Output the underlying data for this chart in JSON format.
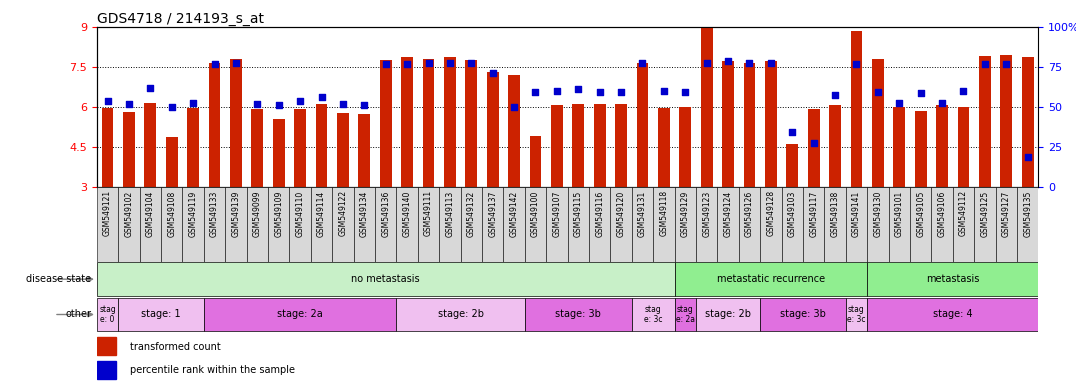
{
  "title": "GDS4718 / 214193_s_at",
  "samples": [
    "GSM549121",
    "GSM549102",
    "GSM549104",
    "GSM549108",
    "GSM549119",
    "GSM549133",
    "GSM549139",
    "GSM549099",
    "GSM549109",
    "GSM549110",
    "GSM549114",
    "GSM549122",
    "GSM549134",
    "GSM549136",
    "GSM549140",
    "GSM549111",
    "GSM549113",
    "GSM549132",
    "GSM549137",
    "GSM549142",
    "GSM549100",
    "GSM549107",
    "GSM549115",
    "GSM549116",
    "GSM549120",
    "GSM549131",
    "GSM549118",
    "GSM549129",
    "GSM549123",
    "GSM549124",
    "GSM549126",
    "GSM549128",
    "GSM549103",
    "GSM549117",
    "GSM549138",
    "GSM549141",
    "GSM549130",
    "GSM549101",
    "GSM549105",
    "GSM549106",
    "GSM549112",
    "GSM549125",
    "GSM549127",
    "GSM549135"
  ],
  "bar_values": [
    5.95,
    5.82,
    6.15,
    4.85,
    5.95,
    7.65,
    7.8,
    5.9,
    5.55,
    5.92,
    6.1,
    5.75,
    5.72,
    7.75,
    7.85,
    7.8,
    7.85,
    7.75,
    7.3,
    7.2,
    4.9,
    6.05,
    6.1,
    6.1,
    6.1,
    7.65,
    5.95,
    6.0,
    9.0,
    7.7,
    7.65,
    7.7,
    4.6,
    5.9,
    6.05,
    8.85,
    7.8,
    6.0,
    5.85,
    6.05,
    6.0,
    7.9,
    7.95,
    7.85
  ],
  "percentile_values": [
    6.2,
    6.1,
    6.7,
    6.0,
    6.15,
    7.6,
    7.65,
    6.1,
    6.05,
    6.2,
    6.35,
    6.1,
    6.05,
    7.6,
    7.6,
    7.65,
    7.65,
    7.65,
    7.25,
    6.0,
    6.55,
    6.6,
    6.65,
    6.55,
    6.55,
    7.65,
    6.6,
    6.55,
    7.65,
    7.7,
    7.65,
    7.65,
    5.05,
    4.65,
    6.45,
    7.6,
    6.55,
    6.15,
    6.5,
    6.15,
    6.6,
    7.6,
    7.6,
    4.1
  ],
  "bar_color": "#cc2200",
  "percentile_color": "#0000cc",
  "ylim_left": [
    3,
    9
  ],
  "yticks_left": [
    3,
    4.5,
    6,
    7.5,
    9
  ],
  "ylim_right": [
    0,
    100
  ],
  "yticks_right": [
    0,
    25,
    50,
    75,
    100
  ],
  "hlines": [
    4.5,
    6.0,
    7.5
  ],
  "ds_groups": [
    {
      "label": "no metastasis",
      "start": 0,
      "end": 27,
      "color": "#c8f0c8"
    },
    {
      "label": "metastatic recurrence",
      "start": 27,
      "end": 36,
      "color": "#90EE90"
    },
    {
      "label": "metastasis",
      "start": 36,
      "end": 44,
      "color": "#90EE90"
    }
  ],
  "stage_groups": [
    {
      "label": "stag\ne: 0",
      "start": 0,
      "end": 1,
      "color": "#f0c0f0"
    },
    {
      "label": "stage: 1",
      "start": 1,
      "end": 5,
      "color": "#f0c0f0"
    },
    {
      "label": "stage: 2a",
      "start": 5,
      "end": 14,
      "color": "#e070e0"
    },
    {
      "label": "stage: 2b",
      "start": 14,
      "end": 20,
      "color": "#f0c0f0"
    },
    {
      "label": "stage: 3b",
      "start": 20,
      "end": 25,
      "color": "#e070e0"
    },
    {
      "label": "stag\ne: 3c",
      "start": 25,
      "end": 27,
      "color": "#f0c0f0"
    },
    {
      "label": "stag\ne: 2a",
      "start": 27,
      "end": 28,
      "color": "#e070e0"
    },
    {
      "label": "stage: 2b",
      "start": 28,
      "end": 31,
      "color": "#f0c0f0"
    },
    {
      "label": "stage: 3b",
      "start": 31,
      "end": 35,
      "color": "#e070e0"
    },
    {
      "label": "stag\ne: 3c",
      "start": 35,
      "end": 36,
      "color": "#f0c0f0"
    },
    {
      "label": "stage: 4",
      "start": 36,
      "end": 44,
      "color": "#e070e0"
    }
  ],
  "bar_width": 0.55,
  "label_fontsize": 7,
  "tick_fontsize": 5.5
}
